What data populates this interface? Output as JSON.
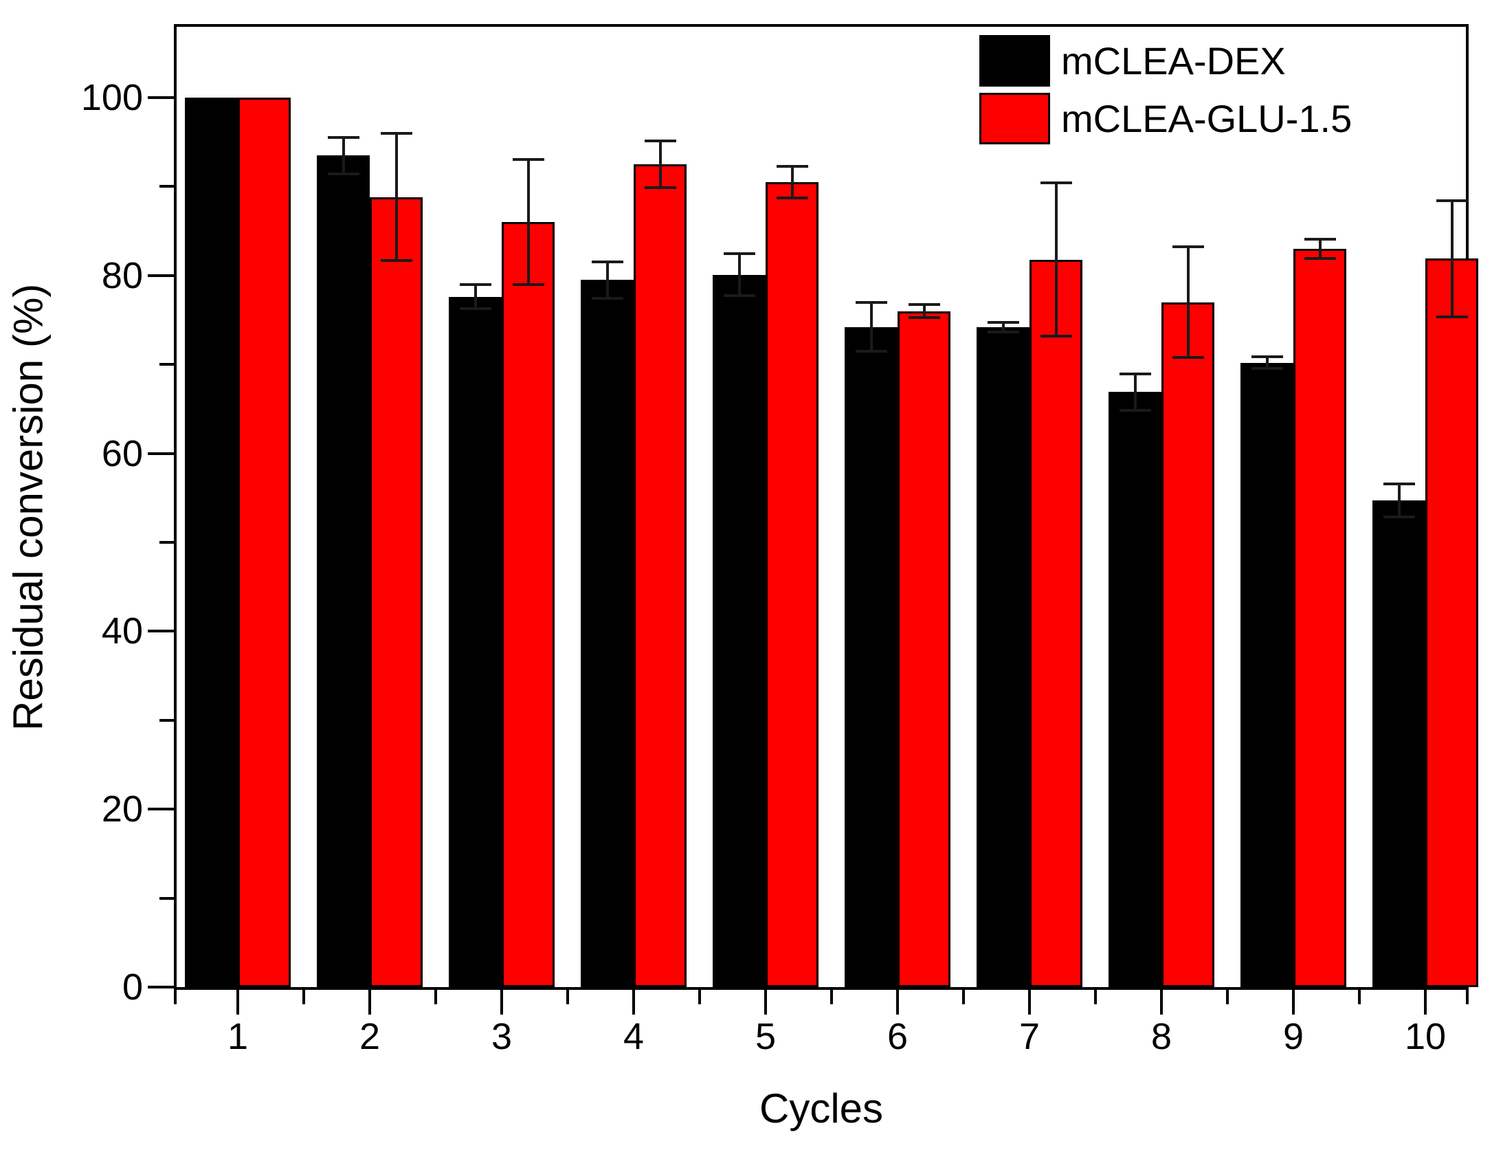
{
  "chart_data": {
    "type": "bar",
    "xlabel": "Cycles",
    "ylabel": "Residual conversion (%)",
    "categories": [
      "1",
      "2",
      "3",
      "4",
      "5",
      "6",
      "7",
      "8",
      "9",
      "10"
    ],
    "series": [
      {
        "name": "mCLEA-DEX",
        "color": "#000000",
        "values": [
          100,
          93.5,
          77.6,
          79.5,
          80.1,
          74.2,
          74.2,
          66.9,
          70.2,
          54.7
        ],
        "errors": [
          0,
          2.2,
          1.5,
          2.2,
          2.5,
          2.9,
          0.7,
          2.2,
          0.8,
          2.0
        ]
      },
      {
        "name": "mCLEA-GLU-1.5",
        "color": "#ff0000",
        "values": [
          100,
          88.8,
          86.0,
          92.5,
          90.5,
          76.0,
          81.8,
          77.0,
          83.0,
          81.9
        ],
        "errors": [
          0,
          7.3,
          7.2,
          2.8,
          1.9,
          0.9,
          8.8,
          6.4,
          1.2,
          6.7
        ]
      }
    ],
    "ylim": [
      0,
      108
    ],
    "yticks_major": [
      0,
      20,
      40,
      60,
      80,
      100
    ],
    "yticks_minor": [
      10,
      30,
      50,
      70,
      90
    ],
    "xticks_minor_positions": [
      0.5,
      1.5,
      2.5,
      3.5,
      4.5,
      5.5,
      6.5,
      7.5,
      8.5,
      9.5,
      10.5
    ],
    "legend_position": "top-right",
    "grid": false,
    "error_bar_color": "#1a1a1a",
    "axis_color": "#000000"
  }
}
